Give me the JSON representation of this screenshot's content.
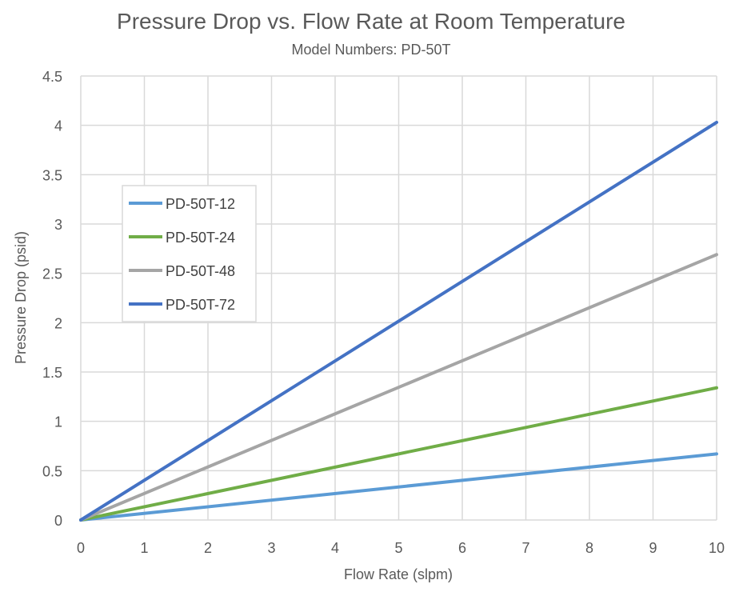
{
  "chart_data": {
    "type": "line",
    "title": "Pressure Drop vs. Flow Rate at Room Temperature",
    "subtitle": "Model Numbers: PD-50T",
    "xlabel": "Flow Rate (slpm)",
    "ylabel": "Pressure Drop (psid)",
    "xlim": [
      0,
      10
    ],
    "ylim": [
      0,
      4.5
    ],
    "x_ticks": [
      "0",
      "1",
      "2",
      "3",
      "4",
      "5",
      "6",
      "7",
      "8",
      "9",
      "10"
    ],
    "y_ticks": [
      "0",
      "0.5",
      "1",
      "1.5",
      "2",
      "2.5",
      "3",
      "3.5",
      "4",
      "4.5"
    ],
    "grid": true,
    "legend_position": "left-middle",
    "series": [
      {
        "name": "PD-50T-12",
        "color": "#5b9bd5",
        "x": [
          0,
          10
        ],
        "y": [
          0,
          0.67
        ]
      },
      {
        "name": "PD-50T-24",
        "color": "#70ad47",
        "x": [
          0,
          10
        ],
        "y": [
          0,
          1.34
        ]
      },
      {
        "name": "PD-50T-48",
        "color": "#a5a5a5",
        "x": [
          0,
          10
        ],
        "y": [
          0,
          2.69
        ]
      },
      {
        "name": "PD-50T-72",
        "color": "#4472c4",
        "x": [
          0,
          10
        ],
        "y": [
          0,
          4.03
        ]
      }
    ]
  }
}
